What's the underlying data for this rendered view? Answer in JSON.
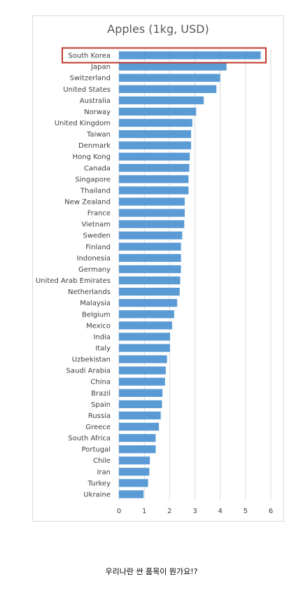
{
  "chart_data": {
    "type": "bar",
    "orientation": "horizontal",
    "title": "Apples (1kg, USD)",
    "xlabel": "",
    "ylabel": "",
    "xlim": [
      0,
      6
    ],
    "x_ticks": [
      "0",
      "1",
      "2",
      "3",
      "4",
      "5",
      "6"
    ],
    "grid": true,
    "legend": "none",
    "bar_color": "#5B9BD5",
    "highlight_color": "#C0392B",
    "highlighted_category": "South Korea",
    "categories": [
      "South Korea",
      "Japan",
      "Switzerland",
      "United States",
      "Australia",
      "Norway",
      "United Kingdom",
      "Taiwan",
      "Denmark",
      "Hong Kong",
      "Canada",
      "Singapore",
      "Thailand",
      "New Zealand",
      "France",
      "Vietnam",
      "Sweden",
      "Finland",
      "Indonesia",
      "Germany",
      "United Arab Emirates",
      "Netherlands",
      "Malaysia",
      "Belgium",
      "Mexico",
      "India",
      "Italy",
      "Uzbekistan",
      "Saudi Arabia",
      "China",
      "Brazil",
      "Spain",
      "Russia",
      "Greece",
      "South Africa",
      "Portugal",
      "Chile",
      "Iran",
      "Turkey",
      "Ukraine"
    ],
    "values": [
      5.6,
      4.25,
      4.0,
      3.85,
      3.35,
      3.05,
      2.9,
      2.85,
      2.85,
      2.8,
      2.78,
      2.75,
      2.75,
      2.6,
      2.6,
      2.58,
      2.5,
      2.45,
      2.45,
      2.45,
      2.42,
      2.4,
      2.3,
      2.18,
      2.1,
      2.02,
      2.02,
      1.9,
      1.85,
      1.82,
      1.72,
      1.7,
      1.65,
      1.58,
      1.45,
      1.45,
      1.22,
      1.2,
      1.15,
      0.97
    ]
  },
  "caption": "우리나란 싼 품목이 뭔가요!?"
}
